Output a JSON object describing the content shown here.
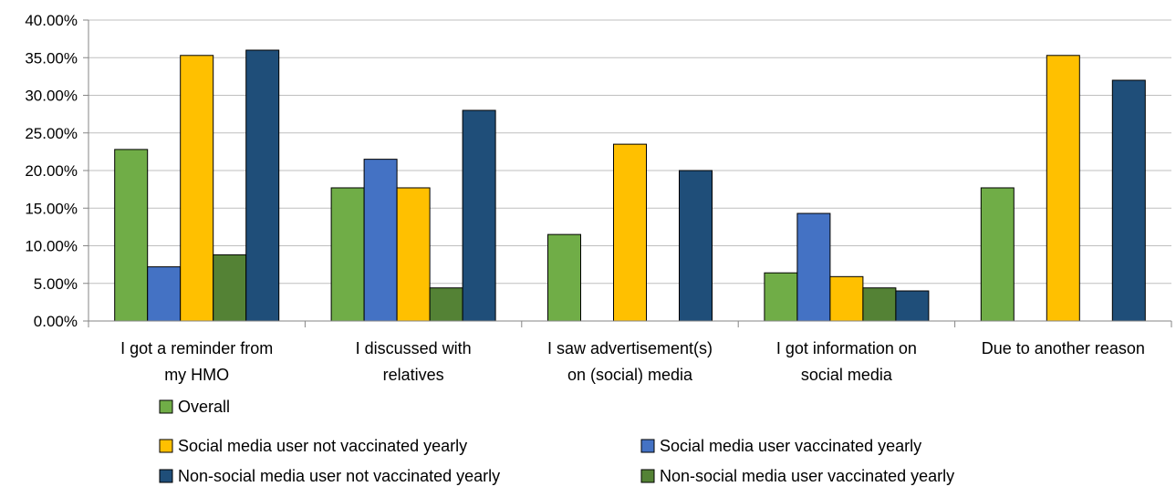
{
  "chart_data": {
    "type": "bar",
    "title": "",
    "xlabel": "",
    "ylabel": "",
    "ylim": [
      0,
      40
    ],
    "y_tick_labels": [
      "0.00%",
      "5.00%",
      "10.00%",
      "15.00%",
      "20.00%",
      "25.00%",
      "30.00%",
      "35.00%",
      "40.00%"
    ],
    "grid": true,
    "legend_position": "bottom",
    "categories": [
      [
        "I got a reminder from",
        "my HMO"
      ],
      [
        "I discussed with",
        "relatives"
      ],
      [
        "I saw advertisement(s)",
        "on (social) media"
      ],
      [
        "I got information on",
        "social media"
      ],
      [
        "Due to another reason"
      ]
    ],
    "series": [
      {
        "name": "Overall",
        "color": "#70AD47",
        "values": [
          22.8,
          17.7,
          11.5,
          6.4,
          17.7
        ]
      },
      {
        "name": "Social media user vaccinated yearly",
        "color": "#4472C4",
        "values": [
          7.2,
          21.5,
          0,
          14.3,
          0
        ]
      },
      {
        "name": "Social media user not vaccinated yearly",
        "color": "#FFC000",
        "values": [
          35.3,
          17.7,
          23.5,
          5.9,
          35.3
        ]
      },
      {
        "name": "Non-social media user vaccinated yearly",
        "color": "#548235",
        "values": [
          8.8,
          4.4,
          0,
          4.4,
          0
        ]
      },
      {
        "name": "Non-social media user not vaccinated yearly",
        "color": "#1F4E79",
        "values": [
          36.0,
          28.0,
          20.0,
          4.0,
          32.0
        ]
      }
    ],
    "legend_order": [
      0,
      2,
      1,
      4,
      3
    ]
  }
}
